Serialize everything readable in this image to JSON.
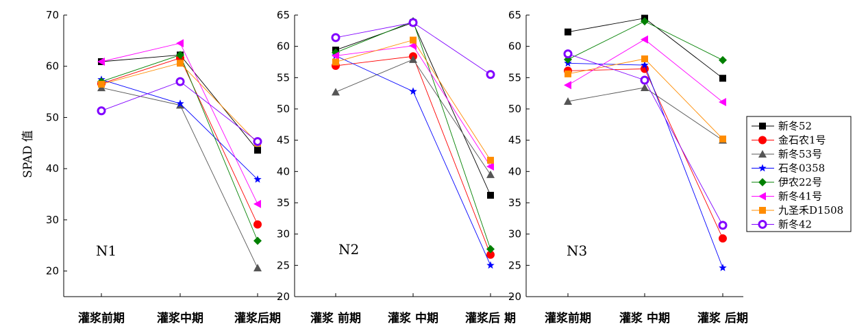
{
  "chart_data": {
    "type": "line",
    "ylabel": "SPAD 值",
    "categories": [
      "灌浆前期",
      "灌浆中期",
      "灌浆后期"
    ],
    "series_names": [
      "新冬52",
      "金石农1号",
      "新冬53号",
      "石冬0358",
      "伊农22号",
      "新冬41号",
      "九圣禾D1508",
      "新冬42"
    ],
    "colors": [
      "#000000",
      "#ff0000",
      "#555555",
      "#0000ff",
      "#008000",
      "#ff00ff",
      "#ff8c00",
      "#8000ff"
    ],
    "markers": [
      "square",
      "circle",
      "triangle",
      "star",
      "diamond",
      "triangle-left",
      "square",
      "ring"
    ],
    "legend_position": "right",
    "grid": false,
    "panels": [
      {
        "label": "N1",
        "categories": [
          "灌浆前期",
          "灌浆中期",
          "灌浆后期"
        ],
        "ylim": [
          15,
          70
        ],
        "yticks": [
          20,
          30,
          40,
          50,
          60,
          70
        ],
        "series": [
          {
            "values": [
              60.9,
              62.2,
              43.6
            ]
          },
          {
            "values": [
              56.6,
              61.6,
              29.1
            ]
          },
          {
            "values": [
              55.8,
              52.4,
              20.6
            ]
          },
          {
            "values": [
              57.4,
              52.7,
              37.9
            ]
          },
          {
            "values": [
              57.0,
              62.2,
              25.9
            ]
          },
          {
            "values": [
              60.9,
              64.5,
              33.1
            ]
          },
          {
            "values": [
              56.5,
              60.6,
              45.0
            ]
          },
          {
            "values": [
              51.3,
              57.0,
              45.3
            ]
          }
        ]
      },
      {
        "label": "N2",
        "categories": [
          "灌浆 前期",
          "灌浆 中期",
          "灌浆后 期"
        ],
        "ylim": [
          20,
          65
        ],
        "yticks": [
          20,
          25,
          30,
          35,
          40,
          45,
          50,
          55,
          60,
          65
        ],
        "series": [
          {
            "values": [
              59.4,
              63.8,
              36.2
            ]
          },
          {
            "values": [
              56.9,
              58.4,
              26.7
            ]
          },
          {
            "values": [
              52.7,
              57.9,
              39.5
            ]
          },
          {
            "values": [
              58.5,
              52.8,
              25.0
            ]
          },
          {
            "values": [
              59.0,
              64.0,
              27.6
            ]
          },
          {
            "values": [
              58.5,
              60.1,
              40.8
            ]
          },
          {
            "values": [
              57.5,
              61.0,
              41.8
            ]
          },
          {
            "values": [
              61.4,
              63.8,
              55.5
            ]
          }
        ]
      },
      {
        "label": "N3",
        "categories": [
          "灌浆前期",
          "灌浆 中期",
          "灌浆 后期"
        ],
        "ylim": [
          20,
          65
        ],
        "yticks": [
          20,
          25,
          30,
          35,
          40,
          45,
          50,
          55,
          60,
          65
        ],
        "series": [
          {
            "values": [
              62.3,
              64.5,
              54.9
            ]
          },
          {
            "values": [
              56.1,
              56.4,
              29.3
            ]
          },
          {
            "values": [
              51.2,
              53.4,
              45.0
            ]
          },
          {
            "values": [
              57.3,
              57.0,
              24.6
            ]
          },
          {
            "values": [
              57.9,
              64.0,
              57.8
            ]
          },
          {
            "values": [
              53.8,
              61.1,
              51.1
            ]
          },
          {
            "values": [
              55.6,
              58.0,
              45.2
            ]
          },
          {
            "values": [
              58.8,
              54.6,
              31.4
            ]
          }
        ]
      }
    ]
  }
}
